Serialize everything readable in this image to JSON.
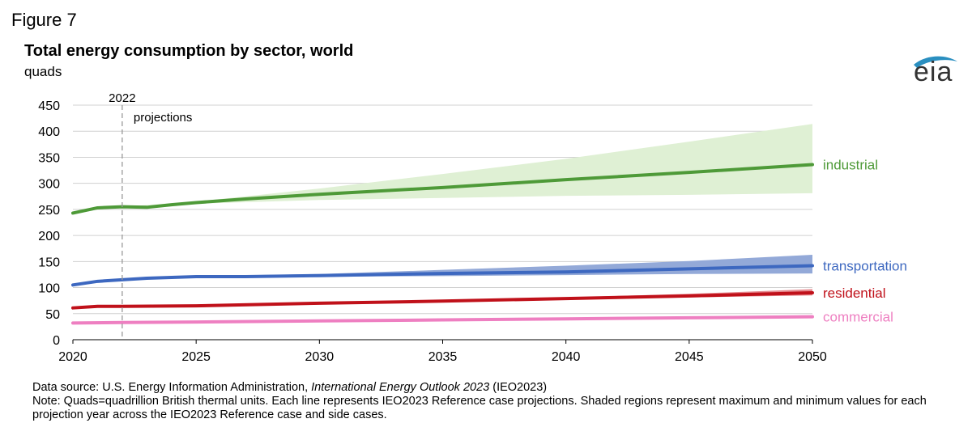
{
  "figure_label": "Figure 7",
  "logo": {
    "name": "eia-logo",
    "text": "eia"
  },
  "footer": {
    "source_prefix": "Data source: U.S. Energy Information Administration, ",
    "source_italic": "International Energy Outlook 2023",
    "source_suffix": " (IEO2023)",
    "note": "Note: Quads=quadrillion British thermal units. Each line represents IEO2023 Reference case projections. Shaded regions represent maximum and minimum values for each projection year across the IEO2023 Reference case and side cases."
  },
  "chart_data": {
    "type": "line",
    "title": "Total energy consumption by sector, world",
    "ylabel": "quads",
    "xlabel": "",
    "xlim": [
      2020,
      2050
    ],
    "ylim": [
      0,
      450
    ],
    "xticks": [
      2020,
      2025,
      2030,
      2035,
      2040,
      2045,
      2050
    ],
    "yticks": [
      0,
      50,
      100,
      150,
      200,
      250,
      300,
      350,
      400,
      450
    ],
    "grid": "horizontal",
    "annotations": {
      "year_marker": "2022",
      "marker_x": 2022,
      "region_label": "projections"
    },
    "series": [
      {
        "name": "industrial",
        "color": "#4e9a38",
        "band_color": "#dff0d4",
        "points": [
          [
            2020,
            243
          ],
          [
            2021,
            253
          ],
          [
            2022,
            255
          ],
          [
            2023,
            254
          ],
          [
            2024,
            259
          ],
          [
            2025,
            263
          ],
          [
            2027,
            270
          ],
          [
            2030,
            279
          ],
          [
            2035,
            292
          ],
          [
            2040,
            307
          ],
          [
            2045,
            321
          ],
          [
            2050,
            336
          ]
        ],
        "band_upper": [
          [
            2022,
            255
          ],
          [
            2025,
            265
          ],
          [
            2030,
            290
          ],
          [
            2035,
            318
          ],
          [
            2040,
            347
          ],
          [
            2045,
            380
          ],
          [
            2050,
            414
          ]
        ],
        "band_lower": [
          [
            2022,
            255
          ],
          [
            2025,
            261
          ],
          [
            2030,
            268
          ],
          [
            2035,
            272
          ],
          [
            2040,
            276
          ],
          [
            2045,
            278
          ],
          [
            2050,
            281
          ]
        ]
      },
      {
        "name": "transportation",
        "color": "#3d68c0",
        "band_color": "#93a9d8",
        "points": [
          [
            2020,
            105
          ],
          [
            2021,
            112
          ],
          [
            2022,
            115
          ],
          [
            2023,
            118
          ],
          [
            2025,
            121
          ],
          [
            2027,
            121
          ],
          [
            2030,
            123
          ],
          [
            2035,
            127
          ],
          [
            2040,
            130
          ],
          [
            2045,
            136
          ],
          [
            2050,
            142
          ]
        ],
        "band_upper": [
          [
            2022,
            115
          ],
          [
            2025,
            122
          ],
          [
            2030,
            126
          ],
          [
            2035,
            134
          ],
          [
            2040,
            142
          ],
          [
            2045,
            151
          ],
          [
            2050,
            163
          ]
        ],
        "band_lower": [
          [
            2022,
            115
          ],
          [
            2025,
            120
          ],
          [
            2030,
            121
          ],
          [
            2035,
            122
          ],
          [
            2040,
            124
          ],
          [
            2045,
            126
          ],
          [
            2050,
            127
          ]
        ]
      },
      {
        "name": "residential",
        "color": "#c0111a",
        "band_color": "#e68a8f",
        "points": [
          [
            2020,
            61
          ],
          [
            2021,
            64
          ],
          [
            2022,
            64
          ],
          [
            2025,
            65
          ],
          [
            2030,
            70
          ],
          [
            2035,
            74
          ],
          [
            2040,
            79
          ],
          [
            2045,
            84
          ],
          [
            2050,
            90
          ]
        ],
        "band_upper": [
          [
            2022,
            64
          ],
          [
            2030,
            71
          ],
          [
            2040,
            81
          ],
          [
            2045,
            88
          ],
          [
            2050,
            97
          ]
        ],
        "band_lower": [
          [
            2022,
            64
          ],
          [
            2030,
            69
          ],
          [
            2040,
            77
          ],
          [
            2045,
            81
          ],
          [
            2050,
            85
          ]
        ]
      },
      {
        "name": "commercial",
        "color": "#ee7fc1",
        "band_color": "#f7c4e2",
        "points": [
          [
            2020,
            32
          ],
          [
            2022,
            33
          ],
          [
            2025,
            34
          ],
          [
            2030,
            36
          ],
          [
            2035,
            38
          ],
          [
            2040,
            40
          ],
          [
            2045,
            42
          ],
          [
            2050,
            44
          ]
        ],
        "band_upper": [
          [
            2022,
            33
          ],
          [
            2030,
            37
          ],
          [
            2040,
            42
          ],
          [
            2050,
            47
          ]
        ],
        "band_lower": [
          [
            2022,
            33
          ],
          [
            2030,
            35
          ],
          [
            2040,
            39
          ],
          [
            2050,
            42
          ]
        ]
      }
    ]
  }
}
